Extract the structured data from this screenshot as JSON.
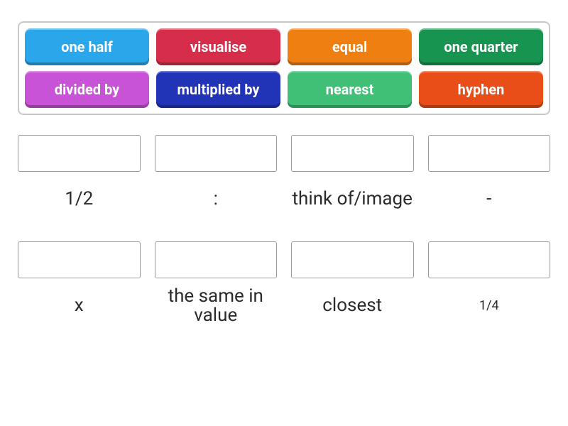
{
  "activity": {
    "type": "match-drag-drop",
    "tray_border_color": "#c8c8c8",
    "background_color": "#ffffff",
    "tiles": [
      {
        "label": "one half",
        "bg": "#2aa7ea"
      },
      {
        "label": "visualise",
        "bg": "#d62e4a"
      },
      {
        "label": "equal",
        "bg": "#f07f11"
      },
      {
        "label": "one quarter",
        "bg": "#17944f"
      },
      {
        "label": "divided by",
        "bg": "#c853d6"
      },
      {
        "label": "multiplied by",
        "bg": "#2133b6"
      },
      {
        "label": "nearest",
        "bg": "#3fc076"
      },
      {
        "label": "hyphen",
        "bg": "#e94e19"
      }
    ],
    "drops": [
      {
        "label": "1/2",
        "small": false
      },
      {
        "label": ":",
        "small": false
      },
      {
        "label": "think of/image",
        "small": false
      },
      {
        "label": "-",
        "small": false
      },
      {
        "label": "x",
        "small": false
      },
      {
        "label": "the same in value",
        "small": false
      },
      {
        "label": "closest",
        "small": false
      },
      {
        "label": "1/4",
        "small": true
      }
    ],
    "tile_text_color": "#ffffff",
    "tile_fontsize": 20,
    "drop_label_fontsize": 26,
    "drop_label_small_fontsize": 18,
    "drop_box_border": "#9a9a9a"
  }
}
